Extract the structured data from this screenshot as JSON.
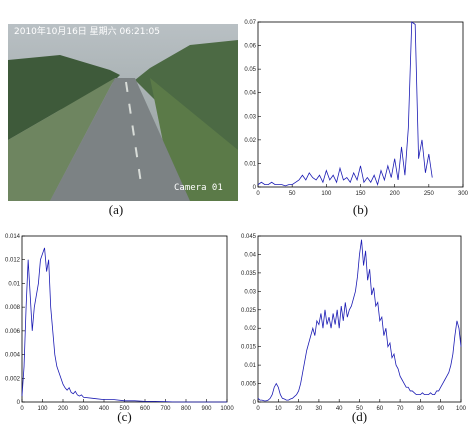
{
  "image": {
    "timestamp": "2010年10月16日 星期六 06:21:05",
    "camera": "Camera 01",
    "caption": "(a)"
  },
  "chart_data": [
    {
      "type": "line",
      "caption": "(b)",
      "color": "#1c1cb4",
      "x": [
        0,
        5,
        10,
        15,
        20,
        25,
        30,
        35,
        40,
        45,
        50,
        55,
        60,
        65,
        70,
        75,
        80,
        85,
        90,
        95,
        100,
        105,
        110,
        115,
        120,
        125,
        130,
        135,
        140,
        145,
        150,
        155,
        160,
        165,
        170,
        175,
        180,
        185,
        190,
        195,
        200,
        205,
        210,
        215,
        220,
        225,
        230,
        235,
        240,
        245,
        250,
        255
      ],
      "values": [
        0.001,
        0.002,
        0.001,
        0.001,
        0.002,
        0.001,
        0.001,
        0.001,
        0.0005,
        0.001,
        0.001,
        0.002,
        0.003,
        0.005,
        0.003,
        0.006,
        0.004,
        0.003,
        0.005,
        0.002,
        0.007,
        0.003,
        0.005,
        0.002,
        0.008,
        0.003,
        0.004,
        0.002,
        0.006,
        0.003,
        0.009,
        0.002,
        0.004,
        0.002,
        0.005,
        0.001,
        0.007,
        0.003,
        0.009,
        0.004,
        0.012,
        0.003,
        0.017,
        0.005,
        0.025,
        0.07,
        0.069,
        0.012,
        0.02,
        0.006,
        0.014,
        0.004
      ],
      "xlim": [
        0,
        300
      ],
      "xticks": [
        0,
        50,
        100,
        150,
        200,
        250,
        300
      ],
      "ylim": [
        0,
        0.07
      ],
      "yticks": [
        0,
        0.01,
        0.02,
        0.03,
        0.04,
        0.05,
        0.06,
        0.07
      ]
    },
    {
      "type": "line",
      "caption": "(c)",
      "color": "#1c1cb4",
      "x": [
        0,
        10,
        20,
        30,
        40,
        50,
        60,
        70,
        80,
        90,
        100,
        110,
        120,
        130,
        140,
        150,
        160,
        170,
        180,
        190,
        200,
        210,
        220,
        230,
        240,
        250,
        260,
        270,
        280,
        290,
        300,
        350,
        400,
        450,
        500,
        550,
        600,
        650,
        700,
        750,
        800,
        850,
        900,
        950,
        1000
      ],
      "values": [
        0.0005,
        0.003,
        0.008,
        0.012,
        0.009,
        0.006,
        0.008,
        0.009,
        0.01,
        0.012,
        0.0125,
        0.013,
        0.011,
        0.012,
        0.008,
        0.006,
        0.004,
        0.003,
        0.0025,
        0.002,
        0.0015,
        0.0012,
        0.001,
        0.0012,
        0.0008,
        0.0007,
        0.0009,
        0.0006,
        0.0005,
        0.0006,
        0.0004,
        0.0003,
        0.0002,
        0.0002,
        0.0001,
        0.0001,
        5e-05,
        5e-05,
        3e-05,
        0,
        0,
        0,
        0,
        0,
        0
      ],
      "xlim": [
        0,
        1000
      ],
      "xticks": [
        0,
        100,
        200,
        300,
        400,
        500,
        600,
        700,
        800,
        900,
        1000
      ],
      "ylim": [
        0,
        0.014
      ],
      "yticks": [
        0,
        0.002,
        0.004,
        0.006,
        0.008,
        0.01,
        0.012,
        0.014
      ]
    },
    {
      "type": "line",
      "caption": "(d)",
      "color": "#1c1cb4",
      "x": [
        0,
        1,
        2,
        3,
        4,
        5,
        6,
        7,
        8,
        9,
        10,
        11,
        12,
        13,
        14,
        15,
        16,
        17,
        18,
        19,
        20,
        21,
        22,
        23,
        24,
        25,
        26,
        27,
        28,
        29,
        30,
        31,
        32,
        33,
        34,
        35,
        36,
        37,
        38,
        39,
        40,
        41,
        42,
        43,
        44,
        45,
        46,
        47,
        48,
        49,
        50,
        51,
        52,
        53,
        54,
        55,
        56,
        57,
        58,
        59,
        60,
        61,
        62,
        63,
        64,
        65,
        66,
        67,
        68,
        69,
        70,
        71,
        72,
        73,
        74,
        75,
        76,
        77,
        78,
        79,
        80,
        81,
        82,
        83,
        84,
        85,
        86,
        87,
        88,
        89,
        90,
        91,
        92,
        93,
        94,
        95,
        96,
        97,
        98,
        99,
        100
      ],
      "values": [
        0.001,
        0.0005,
        0.0005,
        0.0003,
        0.0003,
        0.0005,
        0.001,
        0.002,
        0.004,
        0.005,
        0.004,
        0.002,
        0.001,
        0.0008,
        0.0005,
        0.0005,
        0.0008,
        0.001,
        0.0015,
        0.002,
        0.003,
        0.005,
        0.008,
        0.011,
        0.014,
        0.016,
        0.018,
        0.02,
        0.018,
        0.022,
        0.021,
        0.024,
        0.02,
        0.025,
        0.021,
        0.023,
        0.02,
        0.024,
        0.021,
        0.025,
        0.02,
        0.026,
        0.022,
        0.027,
        0.023,
        0.025,
        0.026,
        0.028,
        0.03,
        0.034,
        0.04,
        0.044,
        0.037,
        0.041,
        0.033,
        0.036,
        0.029,
        0.031,
        0.026,
        0.027,
        0.022,
        0.023,
        0.018,
        0.02,
        0.015,
        0.016,
        0.012,
        0.013,
        0.01,
        0.009,
        0.007,
        0.006,
        0.005,
        0.004,
        0.004,
        0.003,
        0.003,
        0.0025,
        0.002,
        0.002,
        0.002,
        0.0025,
        0.002,
        0.002,
        0.002,
        0.0025,
        0.002,
        0.002,
        0.003,
        0.003,
        0.004,
        0.005,
        0.006,
        0.007,
        0.008,
        0.01,
        0.013,
        0.018,
        0.022,
        0.02,
        0.015
      ],
      "xlim": [
        0,
        100
      ],
      "xticks": [
        0,
        10,
        20,
        30,
        40,
        50,
        60,
        70,
        80,
        90,
        100
      ],
      "ylim": [
        0,
        0.045
      ],
      "yticks": [
        0,
        0.005,
        0.01,
        0.015,
        0.02,
        0.025,
        0.03,
        0.035,
        0.04,
        0.045
      ]
    }
  ]
}
